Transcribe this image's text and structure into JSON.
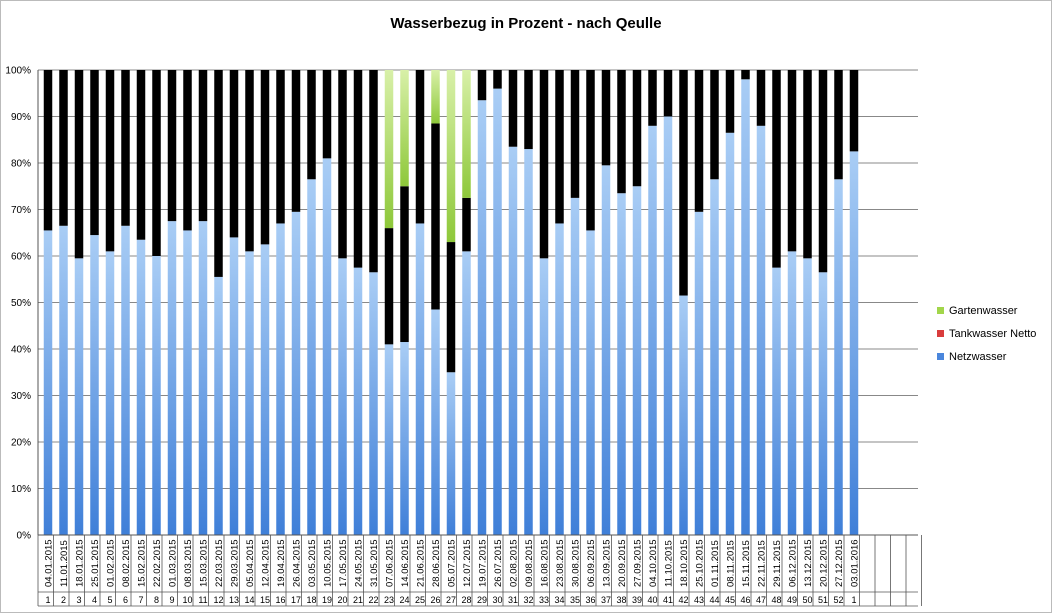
{
  "colors": {
    "Netzwasser": "#4a86dc",
    "Tankwasser Netto": "#d93c3c",
    "Gartenwasser": "#a2d64a",
    "grid": "#888888",
    "axis": "#555555"
  },
  "chart_data": {
    "type": "bar",
    "stacked": true,
    "percent": true,
    "title": "Wasserbezug in Prozent - nach Qeulle",
    "xlabel": "",
    "ylabel": "",
    "ylim": [
      0,
      100
    ],
    "yticks": [
      "0%",
      "10%",
      "20%",
      "30%",
      "40%",
      "50%",
      "60%",
      "70%",
      "80%",
      "90%",
      "100%"
    ],
    "grid": true,
    "legend_position": "right",
    "legend": [
      "Gartenwasser",
      "Tankwasser Netto",
      "Netzwasser"
    ],
    "categories": [
      "04.01.2015",
      "11.01.2015",
      "18.01.2015",
      "25.01.2015",
      "01.02.2015",
      "08.02.2015",
      "15.02.2015",
      "22.02.2015",
      "01.03.2015",
      "08.03.2015",
      "15.03.2015",
      "22.03.2015",
      "29.03.2015",
      "05.04.2015",
      "12.04.2015",
      "19.04.2015",
      "26.04.2015",
      "03.05.2015",
      "10.05.2015",
      "17.05.2015",
      "24.05.2015",
      "31.05.2015",
      "07.06.2015",
      "14.06.2015",
      "21.06.2015",
      "28.06.2015",
      "05.07.2015",
      "12.07.2015",
      "19.07.2015",
      "26.07.2015",
      "02.08.2015",
      "09.08.2015",
      "16.08.2015",
      "23.08.2015",
      "30.08.2015",
      "06.09.2015",
      "13.09.2015",
      "20.09.2015",
      "27.09.2015",
      "04.10.2015",
      "11.10.2015",
      "18.10.2015",
      "25.10.2015",
      "01.11.2015",
      "08.11.2015",
      "15.11.2015",
      "22.11.2015",
      "29.11.2015",
      "06.12.2015",
      "13.12.2015",
      "20.12.2015",
      "27.12.2015",
      "03.01.2016"
    ],
    "weeks": [
      "1",
      "2",
      "3",
      "4",
      "5",
      "6",
      "7",
      "8",
      "9",
      "10",
      "11",
      "12",
      "13",
      "14",
      "15",
      "16",
      "17",
      "18",
      "19",
      "20",
      "21",
      "22",
      "23",
      "24",
      "25",
      "26",
      "27",
      "28",
      "29",
      "30",
      "31",
      "32",
      "33",
      "34",
      "35",
      "36",
      "37",
      "38",
      "39",
      "40",
      "41",
      "42",
      "43",
      "44",
      "45",
      "46",
      "47",
      "48",
      "49",
      "50",
      "51",
      "52",
      "1"
    ],
    "series": [
      {
        "name": "Netzwasser",
        "values": [
          65.5,
          66.5,
          59.5,
          64.5,
          61,
          66.5,
          63.5,
          60,
          67.5,
          65.5,
          67.5,
          55.5,
          64,
          61,
          62.5,
          67,
          69.5,
          76.5,
          81,
          59.5,
          57.5,
          56.5,
          41,
          41.5,
          67,
          48.5,
          35,
          61,
          93.5,
          96,
          83.5,
          83,
          59.5,
          67,
          72.5,
          65.5,
          79.5,
          73.5,
          75,
          88,
          90,
          51.5,
          69.5,
          76.5,
          86.5,
          98,
          88,
          57.5,
          61,
          59.5,
          56.5,
          76.5,
          82.5
        ]
      },
      {
        "name": "Tankwasser Netto",
        "values": [
          34.5,
          33.5,
          40.5,
          35.5,
          39,
          33.5,
          36.5,
          40,
          32.5,
          34.5,
          32.5,
          44.5,
          36,
          39,
          37.5,
          33,
          30.5,
          23.5,
          19,
          40.5,
          42.5,
          43.5,
          25,
          33.5,
          33,
          40,
          28,
          11.5,
          6.5,
          4,
          16.5,
          17,
          40.5,
          33,
          27.5,
          34.5,
          20.5,
          26.5,
          25,
          12,
          10,
          48.5,
          30.5,
          23.5,
          13.5,
          2,
          12,
          42.5,
          39,
          40.5,
          43.5,
          23.5,
          17.5
        ]
      },
      {
        "name": "Gartenwasser",
        "values": [
          0,
          0,
          0,
          0,
          0,
          0,
          0,
          0,
          0,
          0,
          0,
          0,
          0,
          0,
          0,
          0,
          0,
          0,
          0,
          0,
          0,
          0,
          34,
          25,
          0,
          11.5,
          37,
          27.5,
          0,
          0,
          0,
          0,
          0,
          0,
          0,
          0,
          0,
          0,
          0,
          0,
          0,
          0,
          0,
          0,
          0,
          0,
          0,
          0,
          0,
          0,
          0,
          0,
          0
        ]
      }
    ]
  }
}
